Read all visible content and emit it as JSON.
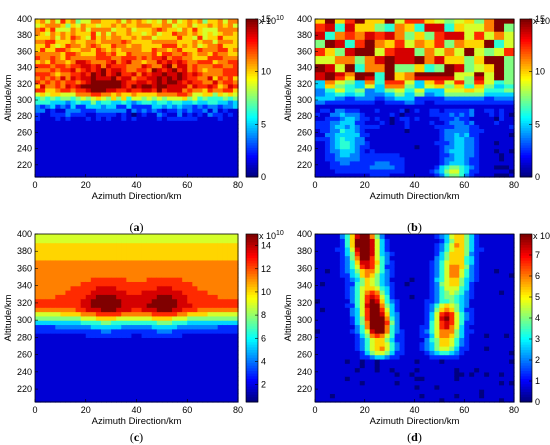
{
  "chart_data": [
    {
      "type": "heatmap",
      "caption_letter": "a",
      "caption_prefix": "(",
      "caption_suffix": ")",
      "xlabel": "Azimuth Direction/km",
      "ylabel": "Altitude/km",
      "xlim": [
        0,
        80
      ],
      "ylim": [
        205,
        400
      ],
      "xticks": [
        "0",
        "20",
        "40",
        "60",
        "80"
      ],
      "yticks": [
        "220",
        "240",
        "260",
        "280",
        "300",
        "320",
        "340",
        "360",
        "380",
        "400"
      ],
      "colorbar": {
        "min": 0,
        "max": 15,
        "ticks": [
          "0",
          "5",
          "10",
          "15"
        ],
        "exponent_label": "x 10",
        "exponent": "10"
      },
      "field": {
        "kind": "noisy_layer",
        "base": 1.5,
        "peak": 15,
        "center_alt": 318,
        "width": 20,
        "upper_level": 11,
        "blobs": [
          {
            "x": 27,
            "y": 320,
            "amp": 3
          },
          {
            "x": 52,
            "y": 322,
            "amp": 3
          }
        ]
      }
    },
    {
      "type": "heatmap",
      "caption_letter": "b",
      "caption_prefix": "(",
      "caption_suffix": ")",
      "xlabel": "Azimuth Direction/km",
      "ylabel": "Altitude/km",
      "xlim": [
        0,
        80
      ],
      "ylim": [
        205,
        400
      ],
      "xticks": [
        "0",
        "20",
        "40",
        "60",
        "80"
      ],
      "yticks": [
        "220",
        "240",
        "260",
        "280",
        "300",
        "320",
        "340",
        "360",
        "380",
        "400"
      ],
      "colorbar": {
        "min": 0,
        "max": 15,
        "ticks": [
          "0",
          "5",
          "10",
          "15"
        ],
        "exponent_label": "x 10",
        "exponent": "9"
      },
      "field": {
        "kind": "noisy_upper",
        "base": 0.5,
        "peak": 14,
        "boundary_alt": 290
      }
    },
    {
      "type": "heatmap",
      "caption_letter": "c",
      "caption_prefix": "(",
      "caption_suffix": ")",
      "xlabel": "Azimuth Direction/km",
      "ylabel": "Altitude/km",
      "xlim": [
        0,
        80
      ],
      "ylim": [
        205,
        400
      ],
      "xticks": [
        "0",
        "20",
        "40",
        "60",
        "80"
      ],
      "yticks": [
        "220",
        "240",
        "260",
        "280",
        "300",
        "320",
        "340",
        "360",
        "380",
        "400"
      ],
      "colorbar": {
        "min": 0.5,
        "max": 15,
        "ticks": [
          "2",
          "4",
          "6",
          "8",
          "10",
          "12",
          "14"
        ],
        "exponent_label": "x 10",
        "exponent": "10"
      },
      "field": {
        "kind": "smooth_layer",
        "base": 1.5,
        "peak": 15,
        "center_alt": 318,
        "width": 20,
        "upper_level": 11,
        "blobs": [
          {
            "x": 28,
            "y": 315,
            "amp": 3.5
          },
          {
            "x": 51,
            "y": 315,
            "amp": 3.5
          }
        ]
      }
    },
    {
      "type": "heatmap",
      "caption_letter": "d",
      "caption_prefix": "(",
      "caption_suffix": ")",
      "xlabel": "Azimuth Direction/km",
      "ylabel": "Altitude/km",
      "xlim": [
        0,
        80
      ],
      "ylim": [
        205,
        400
      ],
      "xticks": [
        "0",
        "20",
        "40",
        "60",
        "80"
      ],
      "yticks": [
        "220",
        "240",
        "260",
        "280",
        "300",
        "320",
        "340",
        "360",
        "380",
        "400"
      ],
      "colorbar": {
        "min": 0,
        "max": 8,
        "ticks": [
          "0",
          "1",
          "2",
          "3",
          "4",
          "5",
          "6",
          "7"
        ],
        "exponent_label": "x 10",
        "exponent": "9"
      },
      "field": {
        "kind": "plumes",
        "base": 0.3,
        "peak": 8,
        "plumes": [
          {
            "x_bottom": 26,
            "x_top": 19,
            "y_bottom": 270,
            "y_top": 400,
            "amp": 7.5
          },
          {
            "x_bottom": 52,
            "x_top": 58,
            "y_bottom": 270,
            "y_top": 400,
            "amp": 5.5
          }
        ]
      }
    }
  ]
}
